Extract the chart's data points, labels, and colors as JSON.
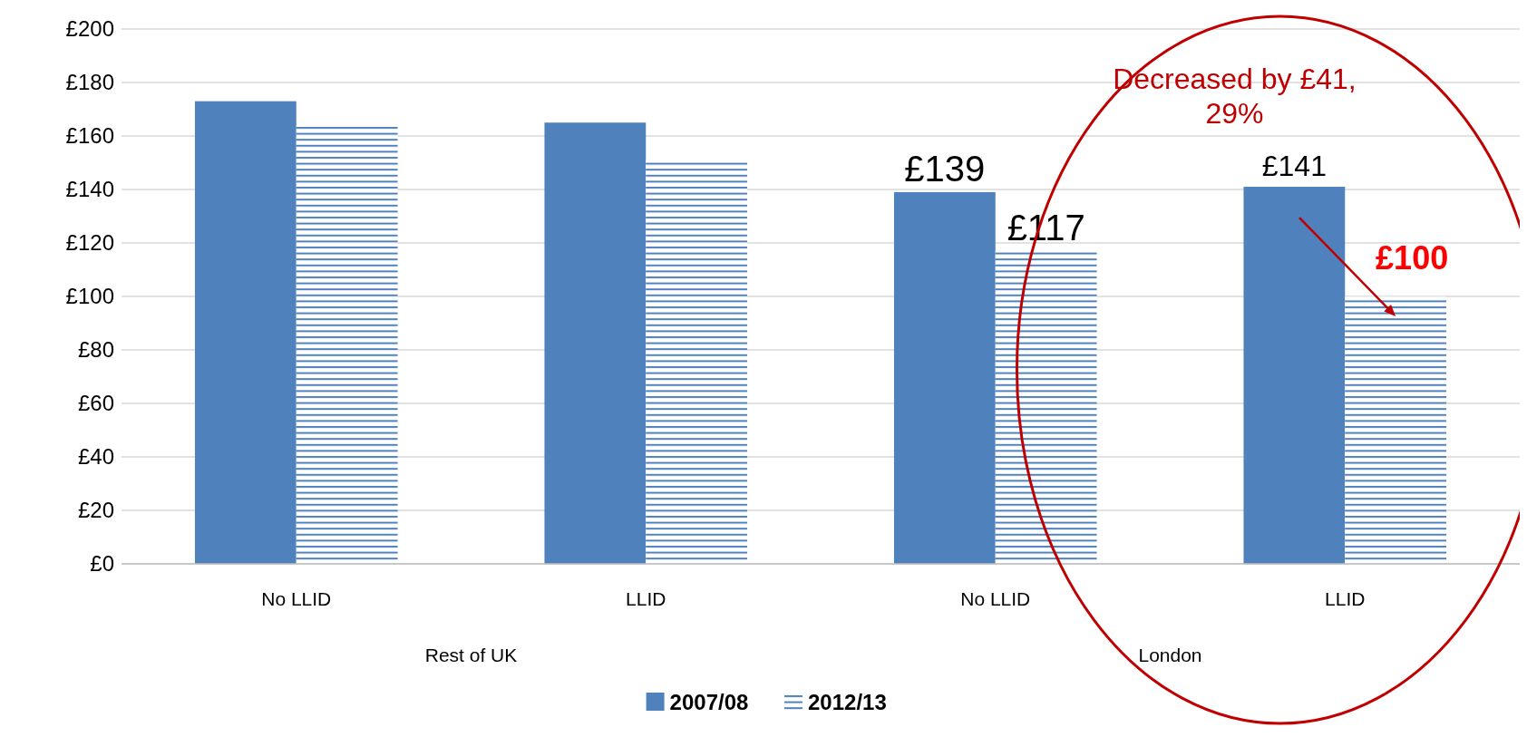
{
  "chart_data": {
    "type": "bar",
    "categories": [
      "No LLID",
      "LLID",
      "No LLID",
      "LLID"
    ],
    "series": [
      {
        "name": "2007/08",
        "color": "#4f81bd",
        "values": [
          173,
          165,
          139,
          141
        ],
        "value_labels": [
          null,
          null,
          "£139",
          "£141"
        ]
      },
      {
        "name": "2012/13",
        "color": "#4f81bd",
        "values": [
          164,
          151,
          117,
          100
        ],
        "value_labels": [
          null,
          null,
          "£117",
          "£100"
        ]
      }
    ],
    "ylim": [
      0,
      200
    ],
    "yticks": [
      {
        "value": 0,
        "label": "£0"
      },
      {
        "value": 20,
        "label": "£20"
      },
      {
        "value": 40,
        "label": "£40"
      },
      {
        "value": 60,
        "label": "£60"
      },
      {
        "value": 80,
        "label": "£80"
      },
      {
        "value": 100,
        "label": "£100"
      },
      {
        "value": 120,
        "label": "£120"
      },
      {
        "value": 140,
        "label": "£140"
      },
      {
        "value": 160,
        "label": "£160"
      },
      {
        "value": 180,
        "label": "£180"
      },
      {
        "value": 200,
        "label": "£200"
      }
    ],
    "grid": "y",
    "legend": "bottom",
    "annotations": [
      "Decreased by £41, 29%",
      "Rest of UK",
      "London"
    ]
  }
}
